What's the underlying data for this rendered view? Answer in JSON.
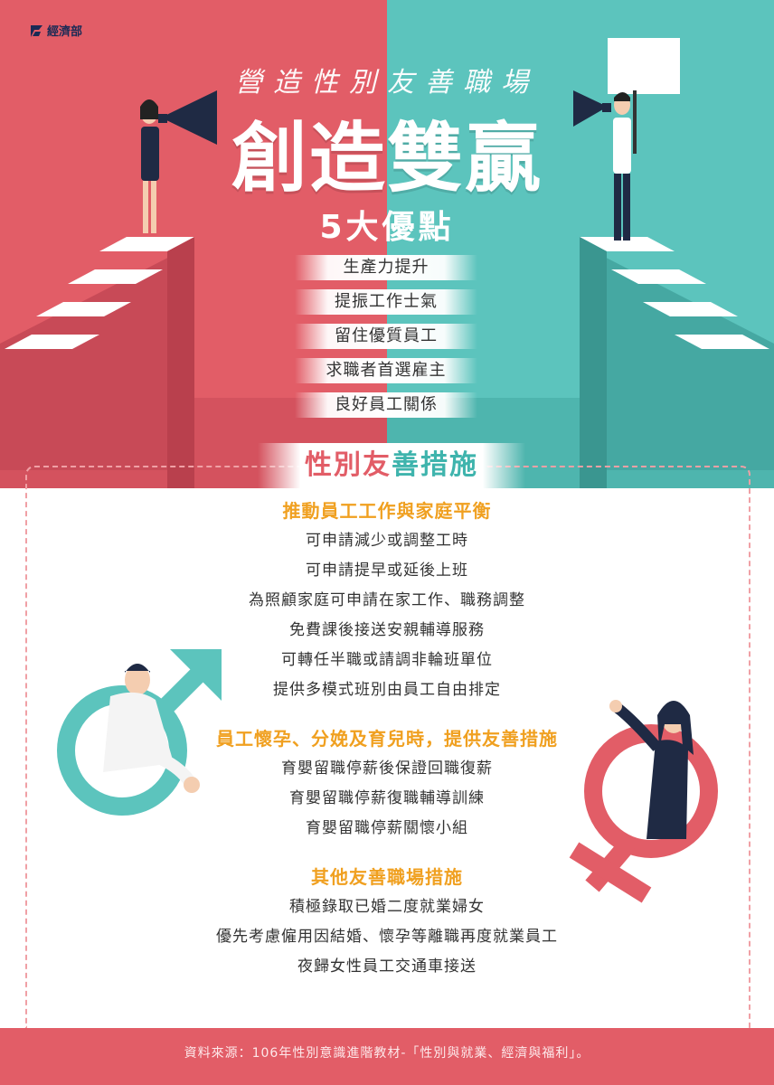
{
  "logo": {
    "text": "經濟部"
  },
  "hero": {
    "subtitle": "營造性別友善職場",
    "title_left": "創造",
    "title_right": "雙贏",
    "advantages_heading": "5大優點",
    "advantages": [
      "生產力提升",
      "提振工作士氣",
      "留住優質員工",
      "求職者首選雇主",
      "良好員工關係"
    ]
  },
  "measures": {
    "heading_left": "性別友",
    "heading_right": "善措施",
    "sections": [
      {
        "title": "推動員工工作與家庭平衡",
        "items": [
          "可申請減少或調整工時",
          "可申請提早或延後上班",
          "為照顧家庭可申請在家工作、職務調整",
          "免費課後接送安親輔導服務",
          "可轉任半職或請調非輪班單位",
          "提供多模式班別由員工自由排定"
        ]
      },
      {
        "title": "員工懷孕、分娩及育兒時，提供友善措施",
        "items": [
          "育嬰留職停薪後保證回職復薪",
          "育嬰留職停薪復職輔導訓練",
          "育嬰留職停薪關懷小組"
        ]
      },
      {
        "title": "其他友善職場措施",
        "items": [
          "積極錄取已婚二度就業婦女",
          "優先考慮僱用因結婚、懷孕等離職再度就業員工",
          "夜歸女性員工交通車接送"
        ]
      }
    ]
  },
  "footer": {
    "source": "資料來源：106年性別意識進階教材-「性別與就業、經濟與福利」。"
  },
  "colors": {
    "coral": "#e25d67",
    "teal": "#5cc4bd",
    "orange": "#f0a020"
  }
}
